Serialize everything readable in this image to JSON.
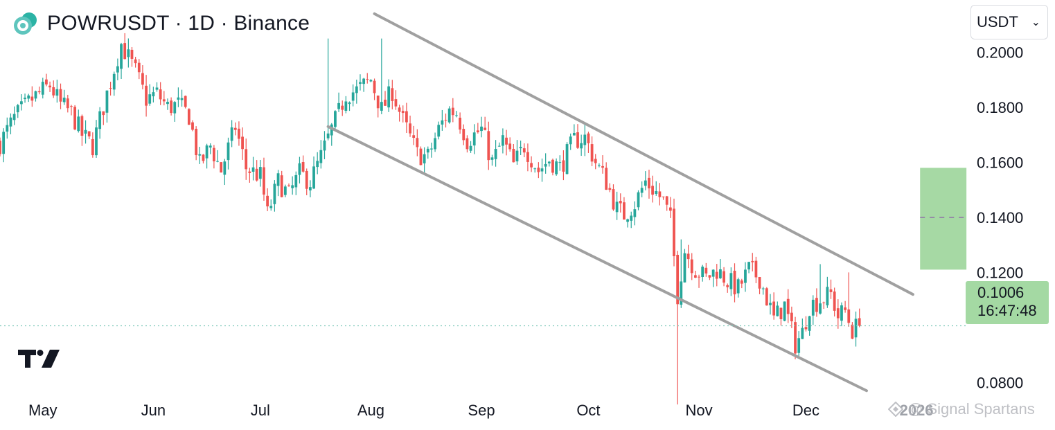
{
  "header": {
    "title": "POWRUSDT · 1D · Binance",
    "logo_icon": "coin-logo-icon"
  },
  "currency_select": {
    "value": "USDT",
    "icon": "chevron-down-icon"
  },
  "price_tag": {
    "price": "0.1006",
    "countdown": "16:47:48"
  },
  "watermark": {
    "text": "@ Signal Spartans",
    "icon": "binance-diamond-icon",
    "year_label": "2026"
  },
  "brand_logo": "tradingview-logo-icon",
  "colors": {
    "up": "#26a69a",
    "down": "#ef5350",
    "channel": "#a0a0a0",
    "target_box": "#a6d9a4",
    "price_line": "#79c7b7"
  },
  "chart_data": {
    "type": "candlestick",
    "symbol": "POWRUSDT",
    "interval": "1D",
    "exchange": "Binance",
    "x_tick_labels": [
      "May",
      "Jun",
      "Jul",
      "Aug",
      "Sep",
      "Oct",
      "Nov",
      "Dec",
      "2026"
    ],
    "y_tick_labels": [
      "0.2000",
      "0.1800",
      "0.1600",
      "0.1400",
      "0.1200",
      "0.0800"
    ],
    "y_ticks": [
      0.2,
      0.18,
      0.16,
      0.14,
      0.12,
      0.08
    ],
    "ylim": [
      0.068,
      0.219
    ],
    "xlim": [
      "2025-04-19",
      "2026-01-14"
    ],
    "grid": false,
    "last_price": 0.1006,
    "close_path": [
      [
        "2025-04-19",
        0.167
      ],
      [
        "2025-04-23",
        0.176
      ],
      [
        "2025-04-28",
        0.183
      ],
      [
        "2025-05-03",
        0.188
      ],
      [
        "2025-05-06",
        0.181
      ],
      [
        "2025-05-09",
        0.178
      ],
      [
        "2025-05-12",
        0.17
      ],
      [
        "2025-05-15",
        0.166
      ],
      [
        "2025-05-19",
        0.185
      ],
      [
        "2025-05-23",
        0.203
      ],
      [
        "2025-05-27",
        0.193
      ],
      [
        "2025-05-30",
        0.183
      ],
      [
        "2025-06-02",
        0.185
      ],
      [
        "2025-06-05",
        0.18
      ],
      [
        "2025-06-08",
        0.181
      ],
      [
        "2025-06-11",
        0.177
      ],
      [
        "2025-06-14",
        0.159
      ],
      [
        "2025-06-17",
        0.166
      ],
      [
        "2025-06-20",
        0.157
      ],
      [
        "2025-06-24",
        0.173
      ],
      [
        "2025-06-27",
        0.158
      ],
      [
        "2025-07-01",
        0.155
      ],
      [
        "2025-07-03",
        0.141
      ],
      [
        "2025-07-06",
        0.153
      ],
      [
        "2025-07-09",
        0.148
      ],
      [
        "2025-07-12",
        0.156
      ],
      [
        "2025-07-15",
        0.153
      ],
      [
        "2025-07-18",
        0.162
      ],
      [
        "2025-07-21",
        0.172
      ],
      [
        "2025-07-23",
        0.178
      ],
      [
        "2025-07-25",
        0.185
      ],
      [
        "2025-07-28",
        0.186
      ],
      [
        "2025-08-01",
        0.19
      ],
      [
        "2025-08-04",
        0.179
      ],
      [
        "2025-08-07",
        0.186
      ],
      [
        "2025-08-10",
        0.175
      ],
      [
        "2025-08-14",
        0.163
      ],
      [
        "2025-08-17",
        0.162
      ],
      [
        "2025-08-20",
        0.172
      ],
      [
        "2025-08-23",
        0.179
      ],
      [
        "2025-08-25",
        0.178
      ],
      [
        "2025-08-28",
        0.168
      ],
      [
        "2025-09-01",
        0.172
      ],
      [
        "2025-09-04",
        0.16
      ],
      [
        "2025-09-07",
        0.168
      ],
      [
        "2025-09-10",
        0.159
      ],
      [
        "2025-09-13",
        0.166
      ],
      [
        "2025-09-17",
        0.157
      ],
      [
        "2025-09-20",
        0.161
      ],
      [
        "2025-09-23",
        0.158
      ],
      [
        "2025-09-27",
        0.168
      ],
      [
        "2025-09-30",
        0.169
      ],
      [
        "2025-10-03",
        0.16
      ],
      [
        "2025-10-06",
        0.153
      ],
      [
        "2025-10-09",
        0.143
      ],
      [
        "2025-10-11",
        0.141
      ],
      [
        "2025-10-14",
        0.145
      ],
      [
        "2025-10-17",
        0.153
      ],
      [
        "2025-10-20",
        0.149
      ],
      [
        "2025-10-22",
        0.146
      ],
      [
        "2025-10-24",
        0.139
      ],
      [
        "2025-10-26",
        0.112
      ],
      [
        "2025-10-28",
        0.128
      ],
      [
        "2025-10-31",
        0.121
      ],
      [
        "2025-11-03",
        0.118
      ],
      [
        "2025-11-06",
        0.121
      ],
      [
        "2025-11-09",
        0.117
      ],
      [
        "2025-11-12",
        0.114
      ],
      [
        "2025-11-15",
        0.121
      ],
      [
        "2025-11-18",
        0.118
      ],
      [
        "2025-11-22",
        0.103
      ],
      [
        "2025-11-25",
        0.108
      ],
      [
        "2025-11-28",
        0.094
      ],
      [
        "2025-11-30",
        0.098
      ],
      [
        "2025-12-02",
        0.108
      ],
      [
        "2025-12-05",
        0.11
      ],
      [
        "2025-12-08",
        0.112
      ],
      [
        "2025-12-10",
        0.104
      ],
      [
        "2025-12-12",
        0.106
      ],
      [
        "2025-12-14",
        0.099
      ],
      [
        "2025-12-16",
        0.1006
      ]
    ],
    "notable_wicks": [
      {
        "date": "2025-10-26",
        "low": 0.072
      },
      {
        "date": "2025-10-27",
        "high": 0.132
      },
      {
        "date": "2025-07-20",
        "high": 0.205
      },
      {
        "date": "2025-08-04",
        "high": 0.205
      },
      {
        "date": "2025-12-05",
        "high": 0.123
      },
      {
        "date": "2025-12-13",
        "high": 0.12
      }
    ],
    "channel_lines": [
      {
        "name": "upper",
        "start": [
          "2025-08-02",
          0.214
        ],
        "end": [
          "2025-12-31",
          0.112
        ]
      },
      {
        "name": "lower",
        "start": [
          "2025-07-20",
          0.173
        ],
        "end": [
          "2025-12-18",
          0.077
        ]
      }
    ],
    "target_zone": {
      "start": "2026-01-02",
      "end": "2026-01-15",
      "top": 0.158,
      "bottom": 0.121,
      "mid": 0.14
    }
  }
}
